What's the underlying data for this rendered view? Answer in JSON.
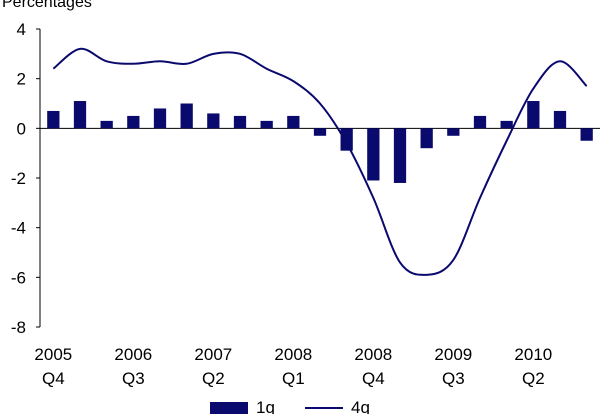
{
  "chart_data": {
    "type": "bar+line",
    "unit_label": "Percentages",
    "ylim": [
      -8,
      4
    ],
    "y_ticks": [
      4,
      2,
      0,
      -2,
      -4,
      -6,
      -8
    ],
    "x_tick_labels": [
      {
        "year": "2005",
        "quarter": "Q4"
      },
      {
        "year": "2006",
        "quarter": "Q3"
      },
      {
        "year": "2007",
        "quarter": "Q2"
      },
      {
        "year": "2008",
        "quarter": "Q1"
      },
      {
        "year": "2008",
        "quarter": "Q4"
      },
      {
        "year": "2009",
        "quarter": "Q3"
      },
      {
        "year": "2010",
        "quarter": "Q2"
      }
    ],
    "categories": [
      "2005 Q4",
      "2006 Q1",
      "2006 Q2",
      "2006 Q3",
      "2006 Q4",
      "2007 Q1",
      "2007 Q2",
      "2007 Q3",
      "2007 Q4",
      "2008 Q1",
      "2008 Q2",
      "2008 Q3",
      "2008 Q4",
      "2009 Q1",
      "2009 Q2",
      "2009 Q3",
      "2009 Q4",
      "2010 Q1",
      "2010 Q2",
      "2010 Q3",
      "2010 Q4"
    ],
    "series": [
      {
        "name": "1q",
        "type": "bar",
        "color": "#0a0a6e",
        "values": [
          0.7,
          1.1,
          0.3,
          0.5,
          0.8,
          1.0,
          0.6,
          0.5,
          0.3,
          0.5,
          -0.3,
          -0.9,
          -2.1,
          -2.2,
          -0.8,
          -0.3,
          0.5,
          0.3,
          1.1,
          0.7,
          -0.5
        ]
      },
      {
        "name": "4q",
        "type": "line",
        "color": "#0a0a6e",
        "values": [
          2.4,
          3.2,
          2.7,
          2.6,
          2.7,
          2.6,
          3.0,
          3.0,
          2.4,
          1.9,
          1.0,
          -0.6,
          -2.8,
          -5.4,
          -5.9,
          -5.3,
          -2.8,
          -0.5,
          1.6,
          2.7,
          1.7
        ]
      }
    ],
    "legend": {
      "position": "bottom"
    }
  }
}
